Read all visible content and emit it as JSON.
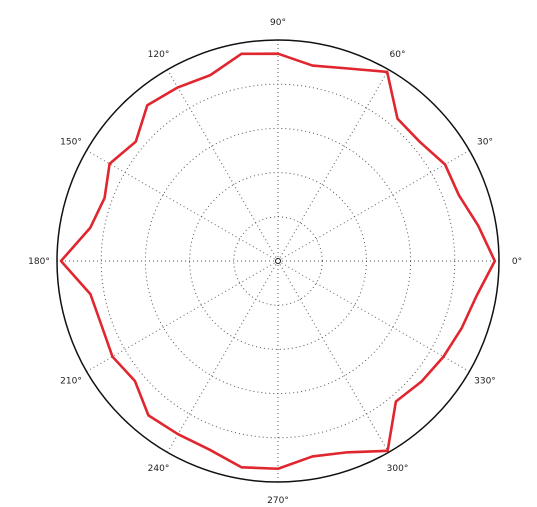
{
  "chart_data": {
    "type": "line",
    "subtype": "polar",
    "title": "",
    "angle_unit": "degrees",
    "angle_ticks": [
      0,
      30,
      60,
      90,
      120,
      150,
      180,
      210,
      240,
      270,
      300,
      330
    ],
    "angle_tick_labels": [
      "0°",
      "30°",
      "60°",
      "90°",
      "120°",
      "150°",
      "180°",
      "210°",
      "240°",
      "270°",
      "300°",
      "330°"
    ],
    "radial_rings": 5,
    "rlim": [
      0,
      1
    ],
    "grid": true,
    "grid_style": "dotted",
    "series": [
      {
        "color": "#e0262e",
        "theta": [
          0,
          10,
          20,
          30,
          40,
          50,
          60,
          70,
          80,
          90,
          100,
          110,
          120,
          130,
          140,
          150,
          160,
          170,
          180,
          190,
          200,
          210,
          220,
          230,
          240,
          250,
          260,
          270,
          280,
          290,
          300,
          310,
          320,
          330,
          340,
          350,
          360
        ],
        "r": [
          0.981,
          0.92,
          0.871,
          0.873,
          0.838,
          0.841,
          0.988,
          0.927,
          0.898,
          0.938,
          0.952,
          0.895,
          0.907,
          0.92,
          0.84,
          0.88,
          0.835,
          0.863,
          0.982,
          0.862,
          0.85,
          0.865,
          0.845,
          0.912,
          0.905,
          0.908,
          0.948,
          0.94,
          0.898,
          0.921,
          0.992,
          0.83,
          0.848,
          0.865,
          0.885,
          0.912,
          0.981
        ]
      }
    ]
  }
}
